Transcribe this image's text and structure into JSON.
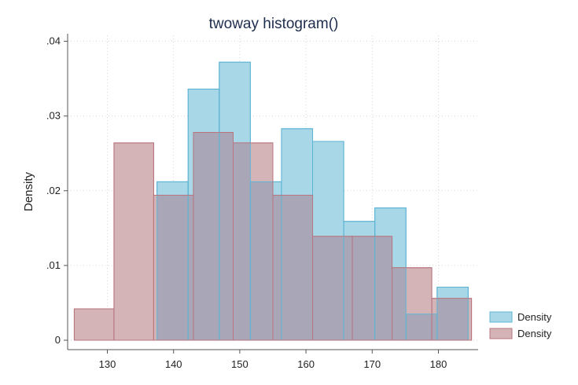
{
  "chart_data": {
    "type": "bar",
    "title": "twoway histogram()",
    "xlabel": "",
    "ylabel": "Density",
    "xlim": [
      124,
      186
    ],
    "ylim": [
      0,
      0.041
    ],
    "xticks": [
      130,
      140,
      150,
      160,
      170,
      180
    ],
    "xtick_labels": [
      "130",
      "140",
      "150",
      "160",
      "170",
      "180"
    ],
    "yticks": [
      0,
      0.01,
      0.02,
      0.03,
      0.04
    ],
    "ytick_labels": [
      "0",
      ".01",
      ".02",
      ".03",
      ".04"
    ],
    "grid": true,
    "legend_position": "bottom-right",
    "series": [
      {
        "name": "Density",
        "color": "#a8d8e8",
        "edge": "#5fb4d3",
        "bins": [
          {
            "x0": 137.5,
            "x1": 142.2,
            "value": 0.0212
          },
          {
            "x0": 142.2,
            "x1": 146.9,
            "value": 0.0336
          },
          {
            "x0": 146.9,
            "x1": 151.6,
            "value": 0.0372
          },
          {
            "x0": 151.6,
            "x1": 156.3,
            "value": 0.0212
          },
          {
            "x0": 156.3,
            "x1": 161.0,
            "value": 0.0283
          },
          {
            "x0": 161.0,
            "x1": 165.7,
            "value": 0.0266
          },
          {
            "x0": 165.7,
            "x1": 170.4,
            "value": 0.0159
          },
          {
            "x0": 170.4,
            "x1": 175.1,
            "value": 0.0177
          },
          {
            "x0": 175.1,
            "x1": 179.8,
            "value": 0.0035
          },
          {
            "x0": 179.8,
            "x1": 184.5,
            "value": 0.0071
          }
        ]
      },
      {
        "name": "Density",
        "color": "#d5b4b7",
        "edge": "#b87680",
        "bins": [
          {
            "x0": 125.0,
            "x1": 131.0,
            "value": 0.0042
          },
          {
            "x0": 131.0,
            "x1": 137.0,
            "value": 0.0264
          },
          {
            "x0": 137.0,
            "x1": 143.0,
            "value": 0.0194
          },
          {
            "x0": 143.0,
            "x1": 149.0,
            "value": 0.0278
          },
          {
            "x0": 149.0,
            "x1": 155.0,
            "value": 0.0264
          },
          {
            "x0": 155.0,
            "x1": 161.0,
            "value": 0.0194
          },
          {
            "x0": 161.0,
            "x1": 167.0,
            "value": 0.0139
          },
          {
            "x0": 167.0,
            "x1": 173.0,
            "value": 0.0139
          },
          {
            "x0": 173.0,
            "x1": 179.0,
            "value": 0.0097
          },
          {
            "x0": 179.0,
            "x1": 185.0,
            "value": 0.0056
          }
        ]
      }
    ],
    "overlap_color": "#a9a7b7"
  }
}
